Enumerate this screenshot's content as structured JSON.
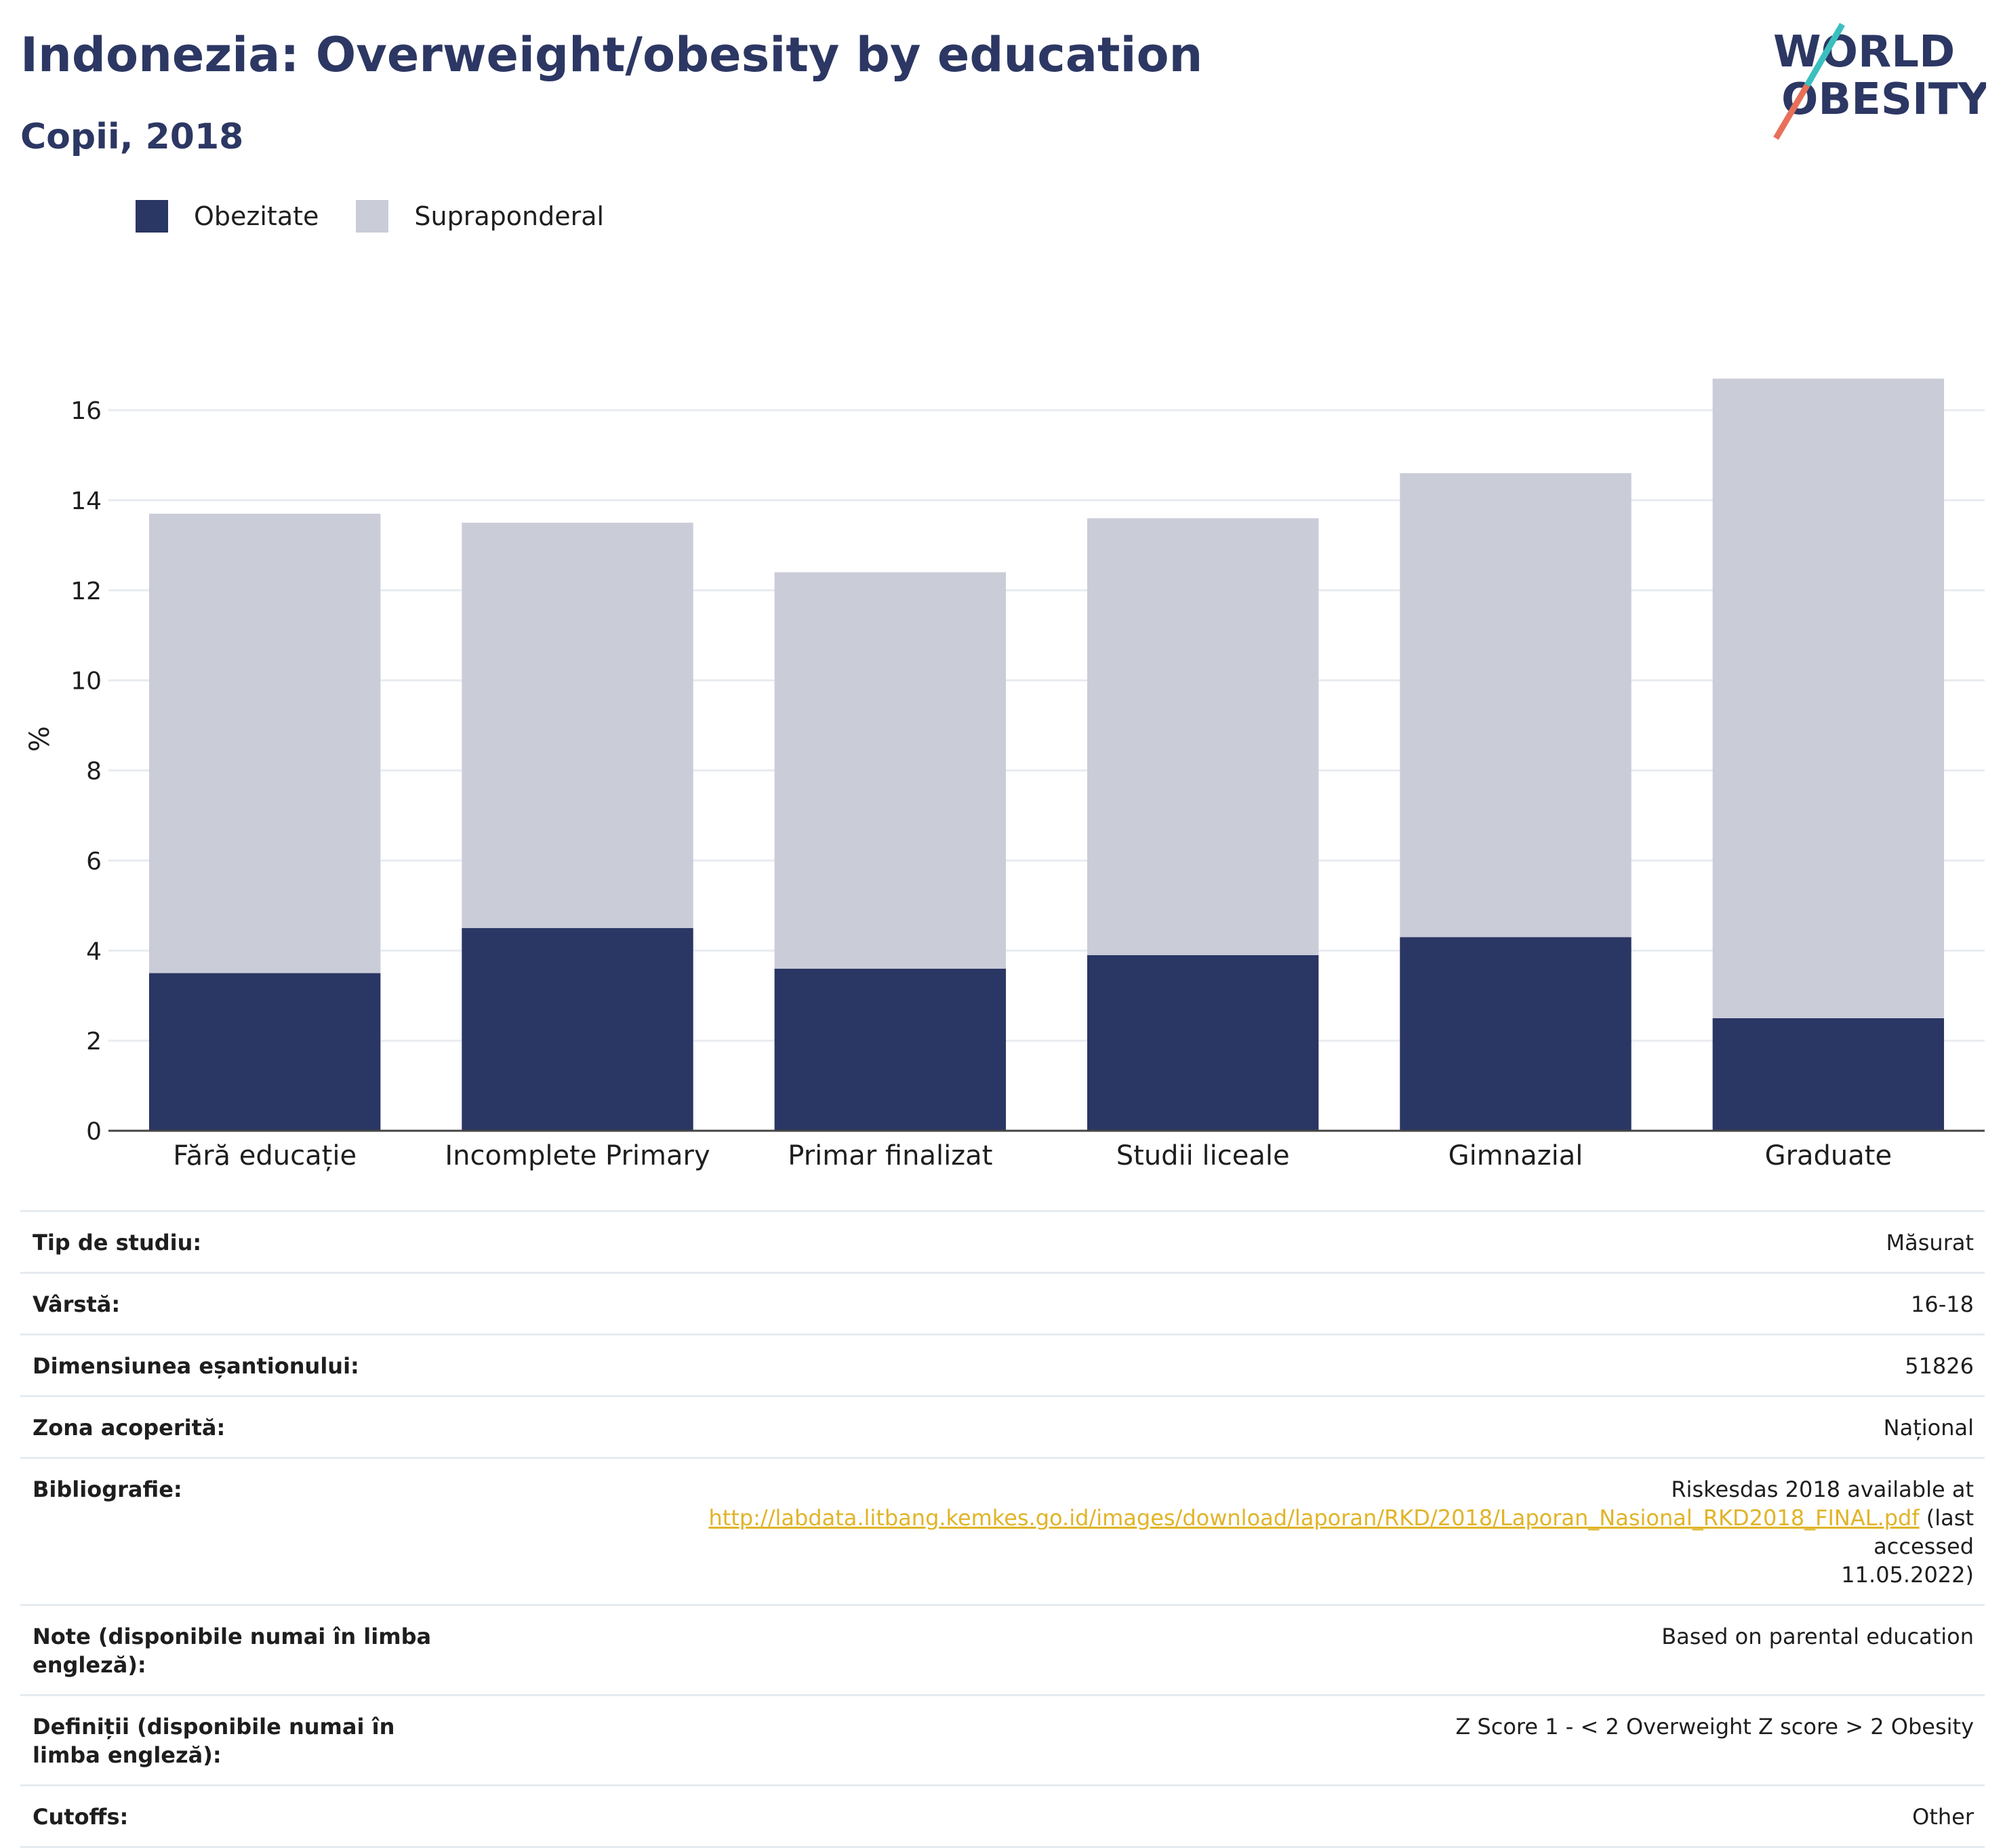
{
  "title": "Indonezia: Overweight/obesity by education",
  "subtitle": "Copii, 2018",
  "logo": {
    "line1": "WORLD",
    "line2": "OBESITY"
  },
  "colors": {
    "obesity": "#2a3663",
    "overweight": "#caccd8",
    "text": "#2c3763",
    "link": "#e0b428"
  },
  "legend": [
    {
      "label": "Obezitate",
      "color": "#2a3663"
    },
    {
      "label": "Supraponderal",
      "color": "#caccd8"
    }
  ],
  "chart_data": {
    "type": "bar",
    "stacked": true,
    "categories": [
      "Fără educație",
      "Incomplete Primary",
      "Primar finalizat",
      "Studii liceale",
      "Gimnazial",
      "Graduate"
    ],
    "series": [
      {
        "name": "Obezitate",
        "values": [
          3.5,
          4.5,
          3.6,
          3.9,
          4.3,
          2.5
        ]
      },
      {
        "name": "Supraponderal",
        "values": [
          10.2,
          9.0,
          8.8,
          9.7,
          10.3,
          14.2
        ]
      }
    ],
    "ylabel": "%",
    "ylim": [
      0,
      17
    ],
    "yticks": [
      0,
      2,
      4,
      6,
      8,
      10,
      12,
      14,
      16
    ],
    "grid": true,
    "legend_position": "top-left"
  },
  "info": {
    "study_type": {
      "label": "Tip de studiu:",
      "value": "Măsurat"
    },
    "age": {
      "label": "Vârstă:",
      "value": "16-18"
    },
    "sample": {
      "label": "Dimensiunea eșantionului:",
      "value": "51826"
    },
    "area": {
      "label": "Zona acoperită:",
      "value": "Național"
    },
    "bibliography": {
      "label": "Bibliografie:",
      "prefix": "Riskesdas 2018 available at",
      "link": "http://labdata.litbang.kemkes.go.id/images/download/laporan/RKD/2018/Laporan_Nasional_RKD2018_FINAL.pdf",
      "suffix1": "(last accessed",
      "suffix2": "11.05.2022)"
    },
    "notes": {
      "label": "Note (disponibile numai în limba engleză):",
      "value": "Based on parental education"
    },
    "definitions": {
      "label": "Definiții (disponibile numai în limba engleză):",
      "value": "Z Score 1 - < 2 Overweight Z score > 2 Obesity"
    },
    "cutoffs": {
      "label": "Cutoffs:",
      "value": "Other"
    }
  }
}
